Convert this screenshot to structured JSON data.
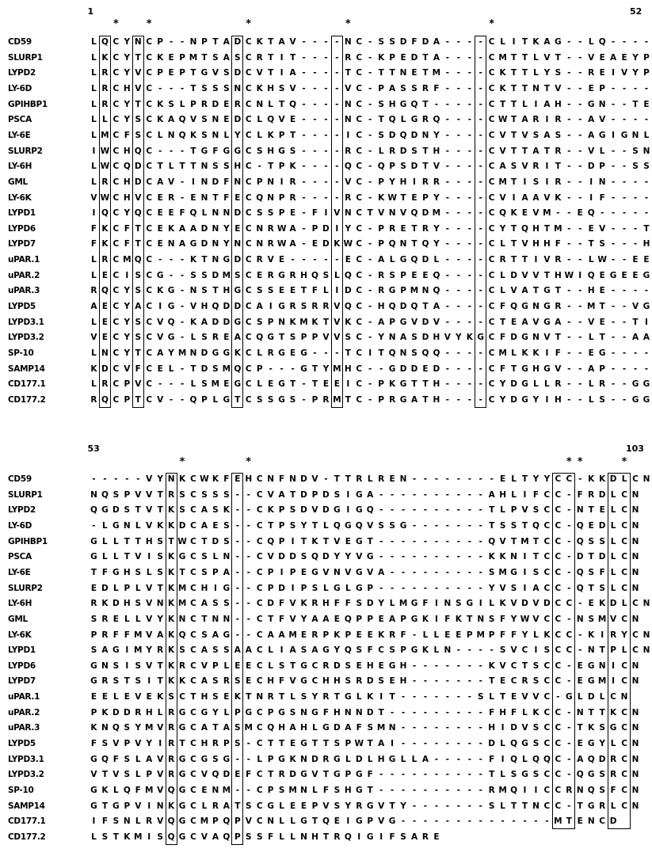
{
  "blocks": [
    {
      "start": "1",
      "end": "52",
      "star_columns": [
        3,
        6,
        15,
        24,
        37
      ],
      "box_columns": [
        2,
        5,
        14,
        23,
        36
      ],
      "rows": [
        {
          "name": "CD59",
          "seq": "LQCYNCP--NPTADCKTAV----NC-SSDFDA----CLITKAG--LQ-----"
        },
        {
          "name": "SLURP1",
          "seq": "LKCYTCKEPMTSASCRTIT----RC-KPEDTA----CMTTLVT--VEAEYPF"
        },
        {
          "name": "LYPD2",
          "seq": "LRCYVCPEPTGVSDCVTIA----TC-TTNETM----CKTTLYS--REIVYPF"
        },
        {
          "name": "LY-6D",
          "seq": "LRCHVC---TSSSNCKHSV----VC-PASSRF----CKTTNTV--EP-----"
        },
        {
          "name": "GPIHBP1",
          "seq": "LRCYTCKSLPRDERCNLTQ----NC-SHGQT-----CTTLIAH--GN--TES"
        },
        {
          "name": "PSCA",
          "seq": "LLCYSCKAQVSNEDCLQVE----NC-TQLGRQ----CWTARIR--AV-----"
        },
        {
          "name": "LY-6E",
          "seq": "LMCFSCLNQKSNLYCLKPT----IC-SDQDNY----CVTVSAS--AGIGNLV"
        },
        {
          "name": "SLURP2",
          "seq": "IWCHQC---TGFGGCSHGS----RC-LRDSTH----CVTTATR--VL--SNT"
        },
        {
          "name": "LY-6H",
          "seq": "LWCQDCTLTTNSSHC-TPK----QC-QPSDTV----CASVRIT--DP--SSS"
        },
        {
          "name": "GML",
          "seq": "LRCHDCAV-INDFNCPNIR----VC-PYHIRR----CMTISIR--IN-----"
        },
        {
          "name": "LY-6K",
          "seq": "VWCHVCER-ENTFECQNPR----RC-KWTEPY----CVIAAVK--IF-----"
        },
        {
          "name": "LYPD1",
          "seq": "IQCYQCEEFQLNNDCSSPE-FIVNCTVNVQDM----CQKEVM--EQ-----"
        },
        {
          "name": "LYPD6",
          "seq": "FKCFTCEKAADNYECNRWA-PDIYC-PRETRY----CYTQHTM--EV---T"
        },
        {
          "name": "LYPD7",
          "seq": "FKCFTCENAGDNYNCNRWA-EDKWC-PQNTQY----CLTVHHF--TS---H"
        },
        {
          "name": "uPAR.1",
          "seq": "LRCMQC---KTNGDCRVE-----EC-ALGQDL----CRTTIVR--LW--EEG"
        },
        {
          "name": "uPAR.2",
          "seq": "LECISCG--SSDMSCERGRHQSLQC-RSPEEQ----CLDVVTHWIQEGEEGR"
        },
        {
          "name": "uPAR.3",
          "seq": "RQCYSCKG-NSTHGCSSEETFLIDC-RGPMNQ----CLVATGT--HE----P"
        },
        {
          "name": "LYPD5",
          "seq": "AECYACIG-VHQDDCAIGRSRRVQC-HQDQTA----CFQGNGR--MT--VGN"
        },
        {
          "name": "LYPD3.1",
          "seq": "LECYSCVQ-KADDGCSPNKMKTVKC-APGVDV----CTEAVGA--VE--TIH"
        },
        {
          "name": "LYPD3.2",
          "seq": "VECYSCVG-LSREACQGTSPPVVSC-YNASDHVYKGCFDGNVT--LT--AAN"
        },
        {
          "name": "SP-10",
          "seq": "LNCYTCAYMNDGGKCLRGEG---TCITQNSQQ----CMLKKIF--EG-----"
        },
        {
          "name": "SAMP14",
          "seq": "KDCVFCEL-TDSMQCP---GTYMHC--GDDED----CFTGHGV--AP-----"
        },
        {
          "name": "CD177.1",
          "seq": "LRCPVC---LSMEGCLEGT-TEEIC-PKGTTH----CYDGLLR--LR--GGG"
        },
        {
          "name": "CD177.2",
          "seq": "RQCPTCV--QPLGTCSSGS-PRMTC-PRGATH----CYDGYIH--LS--GGG"
        }
      ]
    },
    {
      "start": "53",
      "end": "103",
      "star_columns": [
        9,
        15,
        44,
        45,
        49
      ],
      "box_columns": [
        8,
        14,
        43,
        44,
        48,
        49
      ],
      "rows": [
        {
          "name": "CD59",
          "seq": "-----VYNKCWKFEHCNFNDV-TTRLREN--------ELTYYCC-KKDLCN"
        },
        {
          "name": "SLURP1",
          "seq": "NQSPVVTRSCSSS--CVATDPDSIGA----------AHLIFCC-FRDLCN"
        },
        {
          "name": "LYPD2",
          "seq": "QGDSTVTKSCASK--CKPSDVDGIGQ----------TLPVSCC-NTELCN"
        },
        {
          "name": "LY-6D",
          "seq": "-LGNLVKKDCAES--CTPSYTLQGQVSSG-------TSSTQCC-QEDLCN"
        },
        {
          "name": "GPIHBP1",
          "seq": "GLLTTHSTWCTDS--CQPITKTVEGT----------QVTMTCC-QSSLCN"
        },
        {
          "name": "PSCA",
          "seq": "GLLTVISKGCSLN--CVDDSQDYYVG----------KKNITCC-DTDLCN"
        },
        {
          "name": "LY-6E",
          "seq": "TFGHSLSKTCSPA--CPIPEGVNVGVA---------SMGISCC-QSFLCN"
        },
        {
          "name": "SLURP2",
          "seq": "EDLPLVTKMCHIG--CPDIPSLGLGP----------YVSIACC-QTSLCN"
        },
        {
          "name": "LY-6H",
          "seq": "RKDHSVNKMCASS--CDFVKRHFFSDYLMGFINSGILKVDVDCC-EKDLCN"
        },
        {
          "name": "GML",
          "seq": "SRELLVYKNCTNN--CTFVYAAEQPPEAPGKIFKTNSFYWVCC-NSMVCN"
        },
        {
          "name": "LY-6K",
          "seq": "PRFFMVAKQCSAG--CAAMERPKPEEKRF-LLEEPMPFFYLKCC-KIRYCN"
        },
        {
          "name": "LYPD1",
          "seq": "SAGIMYRKSCASSAACLIASAGYQSFCSPGKLN----SVCISCC-NTPLCN"
        },
        {
          "name": "LYPD6",
          "seq": "GNSISVTKRCVPLEECLSTGCRDSEHEGH-------KVCTSCC-EGNICN"
        },
        {
          "name": "LYPD7",
          "seq": "GRSTSITKKCASRSECHFVGCHHSRDSEH-------TECRSCC-EGMICN"
        },
        {
          "name": "uPAR.1",
          "seq": "EELEVEKSCTHSEKTNRTLSYRTGLKIT-------SLTEVVC-GLDLCN"
        },
        {
          "name": "uPAR.2",
          "seq": "PKDDRHLRGCGYLPGCPGSNGFHNNDT---------FHFLKCC-NTTKCN"
        },
        {
          "name": "uPAR.3",
          "seq": "KNQSYMVRGCATASMCQHAHLGDAFSMN--------HIDVSCC-TKSGCN"
        },
        {
          "name": "LYPD5",
          "seq": "FSVPVYIRTCHRPS-CTTEGTTSPWTAI--------DLQGSCC-EGYLCN"
        },
        {
          "name": "LYPD3.1",
          "seq": "GQFSLAVRGCGSG--LPGKNDRGLDLHGLLA-----FIQLQQC-AQDRCN"
        },
        {
          "name": "LYPD3.2",
          "seq": "VTVSLPVRGCVQDEFCTRDGVTGPGF----------TLSGSCC-QGSRCN"
        },
        {
          "name": "SP-10",
          "seq": "GKLQFMVQGCENM--CPSMNLFSHGT----------RMQIICCRNQSFCN"
        },
        {
          "name": "SAMP14",
          "seq": "GTGPVINKGCLRATSCGLEEPVSYRGVTY-------SLTTNCC-TGRLCN"
        },
        {
          "name": "CD177.1",
          "seq": "IFSNLRVQGCMPQPVCNLLGTQEIGPVG--------------MTENCD"
        },
        {
          "name": "CD177.2",
          "seq": "LSTKMISQGCVAQPSSFLLNHTRQIGIFSARE"
        }
      ]
    }
  ]
}
